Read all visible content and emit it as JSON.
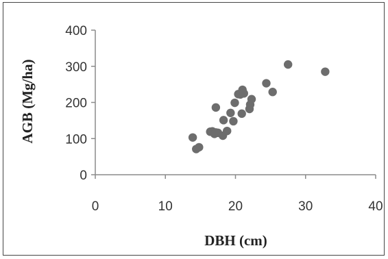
{
  "chart_data": {
    "type": "scatter",
    "title": "",
    "xlabel": "DBH (cm)",
    "ylabel": "AGB (Mg/ha)",
    "xlim": [
      0,
      40
    ],
    "ylim": [
      0,
      400
    ],
    "xticks": [
      "0",
      "10",
      "20",
      "30",
      "40"
    ],
    "yticks": [
      "0",
      "100",
      "200",
      "300",
      "400"
    ],
    "grid": false,
    "legend": "none",
    "marker_color": "#6d6d6d",
    "series": [
      {
        "x": [
          13.9,
          14.4,
          14.8,
          16.4,
          16.7,
          17.0,
          17.2,
          17.5,
          17.2,
          18.2,
          18.3,
          18.8,
          19.3,
          19.7,
          19.9,
          20.4,
          20.7,
          21.0,
          20.9,
          21.2,
          22.0,
          22.1,
          22.3,
          24.4,
          25.3,
          27.5,
          32.8
        ],
        "y": [
          103,
          71,
          76,
          119,
          120,
          113,
          186,
          116,
          117,
          108,
          151,
          121,
          171,
          148,
          199,
          223,
          222,
          235,
          169,
          225,
          182,
          194,
          209,
          253,
          229,
          305,
          285
        ]
      }
    ]
  }
}
